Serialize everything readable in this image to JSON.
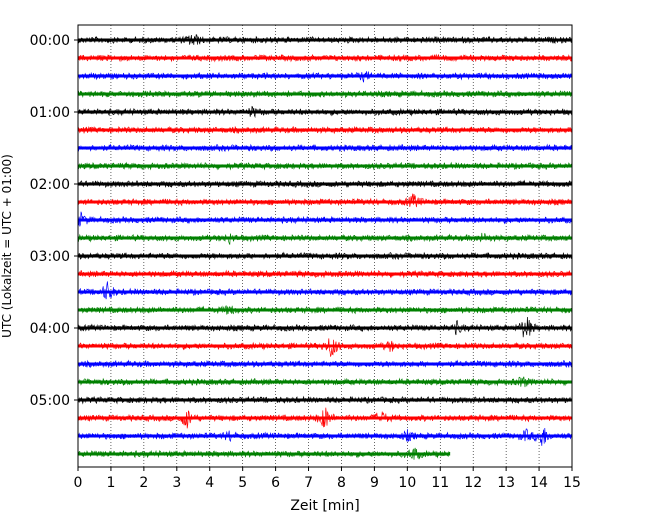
{
  "chart_data": {
    "type": "line",
    "title": "",
    "xlabel": "Zeit  [min]",
    "ylabel": "UTC (Lokalzeit = UTC + 01:00)",
    "xlim": [
      0,
      15
    ],
    "x_ticks": [
      "0",
      "1",
      "2",
      "3",
      "4",
      "5",
      "6",
      "7",
      "8",
      "9",
      "10",
      "11",
      "12",
      "13",
      "14",
      "15"
    ],
    "y_ticks": [
      "00:00",
      "01:00",
      "02:00",
      "03:00",
      "04:00",
      "05:00"
    ],
    "grid": "vertical dotted",
    "trace_colors": [
      "#000000",
      "#ff0000",
      "#0000ff",
      "#008000"
    ],
    "traces": [
      {
        "start": "00:00",
        "color": "#000000",
        "end_min": 15,
        "events": [
          [
            3.5,
            7
          ]
        ]
      },
      {
        "start": "00:15",
        "color": "#ff0000",
        "end_min": 15,
        "events": []
      },
      {
        "start": "00:30",
        "color": "#0000ff",
        "end_min": 15,
        "events": [
          [
            8.7,
            4
          ]
        ]
      },
      {
        "start": "00:45",
        "color": "#008000",
        "end_min": 15,
        "events": []
      },
      {
        "start": "01:00",
        "color": "#000000",
        "end_min": 15,
        "events": [
          [
            5.3,
            4
          ]
        ]
      },
      {
        "start": "01:15",
        "color": "#ff0000",
        "end_min": 15,
        "events": []
      },
      {
        "start": "01:30",
        "color": "#0000ff",
        "end_min": 15,
        "events": []
      },
      {
        "start": "01:45",
        "color": "#008000",
        "end_min": 15,
        "events": []
      },
      {
        "start": "02:00",
        "color": "#000000",
        "end_min": 15,
        "events": []
      },
      {
        "start": "02:15",
        "color": "#ff0000",
        "end_min": 15,
        "events": [
          [
            10.2,
            7
          ]
        ]
      },
      {
        "start": "02:30",
        "color": "#0000ff",
        "end_min": 15,
        "events": [
          [
            0.1,
            6
          ]
        ]
      },
      {
        "start": "02:45",
        "color": "#008000",
        "end_min": 15,
        "events": [
          [
            4.6,
            4
          ],
          [
            12.3,
            4
          ]
        ]
      },
      {
        "start": "03:00",
        "color": "#000000",
        "end_min": 15,
        "events": []
      },
      {
        "start": "03:15",
        "color": "#ff0000",
        "end_min": 15,
        "events": []
      },
      {
        "start": "03:30",
        "color": "#0000ff",
        "end_min": 15,
        "events": [
          [
            0.9,
            10
          ]
        ]
      },
      {
        "start": "03:45",
        "color": "#008000",
        "end_min": 15,
        "events": [
          [
            4.6,
            4
          ]
        ]
      },
      {
        "start": "04:00",
        "color": "#000000",
        "end_min": 15,
        "events": [
          [
            11.5,
            5
          ],
          [
            13.6,
            14
          ]
        ]
      },
      {
        "start": "04:15",
        "color": "#ff0000",
        "end_min": 15,
        "events": [
          [
            7.7,
            12
          ],
          [
            9.5,
            4
          ]
        ]
      },
      {
        "start": "04:30",
        "color": "#0000ff",
        "end_min": 15,
        "events": []
      },
      {
        "start": "04:45",
        "color": "#008000",
        "end_min": 15,
        "events": [
          [
            13.5,
            5
          ]
        ]
      },
      {
        "start": "05:00",
        "color": "#000000",
        "end_min": 15,
        "events": []
      },
      {
        "start": "05:15",
        "color": "#ff0000",
        "end_min": 15,
        "events": [
          [
            3.3,
            10
          ],
          [
            7.5,
            12
          ],
          [
            9.2,
            7
          ]
        ]
      },
      {
        "start": "05:30",
        "color": "#0000ff",
        "end_min": 15,
        "events": [
          [
            4.6,
            4
          ],
          [
            10.0,
            4
          ],
          [
            13.6,
            5
          ],
          [
            14.1,
            12
          ]
        ]
      },
      {
        "start": "05:45",
        "color": "#008000",
        "end_min": 11.3,
        "events": [
          [
            10.2,
            6
          ]
        ]
      }
    ]
  }
}
